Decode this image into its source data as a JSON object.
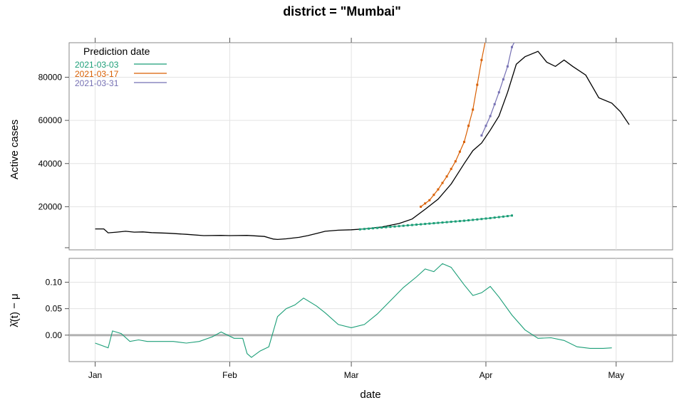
{
  "chart_data": {
    "type": "line",
    "title": "district = \"Mumbai\"",
    "xlabel": "date",
    "x_ticks": [
      "Jan",
      "Feb",
      "Mar",
      "Apr",
      "May"
    ],
    "x_tick_dates": [
      "2021-01-01",
      "2021-02-01",
      "2021-03-01",
      "2021-04-01",
      "2021-05-01"
    ],
    "xlim": [
      "2020-12-26",
      "2021-05-14"
    ],
    "grid": true,
    "colors": {
      "observed": "#000000",
      "p1": "#1b9e77",
      "p2": "#d95f02",
      "p3": "#7570b3",
      "baseline": "#b0b0b0"
    },
    "top": {
      "ylabel": "Active cases",
      "ylim": [
        0,
        96000
      ],
      "y_ticks": [
        20000,
        40000,
        60000,
        80000
      ],
      "y_tick_labels": [
        "20000",
        "40000",
        "60000",
        "80000"
      ],
      "legend": {
        "title": "Prediction date",
        "position": "top-left",
        "entries": [
          "2021-03-03",
          "2021-03-17",
          "2021-03-31"
        ]
      },
      "observed": {
        "x": [
          "2021-01-01",
          "2021-01-03",
          "2021-01-04",
          "2021-01-06",
          "2021-01-08",
          "2021-01-10",
          "2021-01-12",
          "2021-01-14",
          "2021-01-18",
          "2021-01-22",
          "2021-01-26",
          "2021-01-30",
          "2021-02-01",
          "2021-02-05",
          "2021-02-09",
          "2021-02-11",
          "2021-02-12",
          "2021-02-14",
          "2021-02-17",
          "2021-02-19",
          "2021-02-21",
          "2021-02-23",
          "2021-02-26",
          "2021-03-01",
          "2021-03-04",
          "2021-03-08",
          "2021-03-12",
          "2021-03-15",
          "2021-03-18",
          "2021-03-21",
          "2021-03-24",
          "2021-03-27",
          "2021-03-29",
          "2021-03-31",
          "2021-04-02",
          "2021-04-04",
          "2021-04-06",
          "2021-04-08",
          "2021-04-10",
          "2021-04-13",
          "2021-04-15",
          "2021-04-17",
          "2021-04-19",
          "2021-04-21",
          "2021-04-24",
          "2021-04-27",
          "2021-04-30",
          "2021-05-02",
          "2021-05-03",
          "2021-05-04"
        ],
        "y": [
          9700,
          9700,
          7900,
          8200,
          8600,
          8200,
          8300,
          8000,
          7700,
          7200,
          6600,
          6700,
          6600,
          6700,
          6200,
          5000,
          4800,
          5100,
          5800,
          6600,
          7600,
          8600,
          9100,
          9300,
          9700,
          10600,
          12200,
          14300,
          18800,
          23500,
          30500,
          40000,
          46000,
          49500,
          55500,
          62000,
          73000,
          86000,
          89500,
          92000,
          87000,
          85000,
          88000,
          85000,
          81000,
          70500,
          68000,
          64000,
          61000,
          58000
        ]
      },
      "predictions": [
        {
          "name": "2021-03-03",
          "x": [
            "2021-03-03",
            "2021-03-06",
            "2021-03-09",
            "2021-03-12",
            "2021-03-15",
            "2021-03-18",
            "2021-03-21",
            "2021-03-24",
            "2021-03-27",
            "2021-03-30",
            "2021-04-02",
            "2021-04-05",
            "2021-04-07"
          ],
          "y": [
            9500,
            10000,
            10500,
            11000,
            11500,
            12000,
            12500,
            13000,
            13500,
            14100,
            14700,
            15400,
            15900
          ]
        },
        {
          "name": "2021-03-17",
          "x": [
            "2021-03-17",
            "2021-03-19",
            "2021-03-21",
            "2021-03-23",
            "2021-03-25",
            "2021-03-27",
            "2021-03-29",
            "2021-03-31",
            "2021-04-01"
          ],
          "y": [
            20000,
            23000,
            28000,
            34000,
            41000,
            50000,
            65000,
            88000,
            98000
          ]
        },
        {
          "name": "2021-03-31",
          "x": [
            "2021-03-31",
            "2021-04-02",
            "2021-04-04",
            "2021-04-06",
            "2021-04-07",
            "2021-04-08"
          ],
          "y": [
            53000,
            62000,
            73000,
            85000,
            94000,
            98000
          ]
        }
      ]
    },
    "bottom": {
      "ylabel": "λ̂(t) − μ",
      "ylim": [
        -0.05,
        0.145
      ],
      "y_ticks": [
        0,
        0.05,
        0.1
      ],
      "y_tick_labels": [
        "0.00",
        "0.05",
        "0.10"
      ],
      "baseline": 0,
      "series": {
        "x": [
          "2021-01-01",
          "2021-01-04",
          "2021-01-05",
          "2021-01-07",
          "2021-01-09",
          "2021-01-11",
          "2021-01-13",
          "2021-01-16",
          "2021-01-19",
          "2021-01-22",
          "2021-01-25",
          "2021-01-28",
          "2021-01-30",
          "2021-02-02",
          "2021-02-04",
          "2021-02-05",
          "2021-02-06",
          "2021-02-08",
          "2021-02-10",
          "2021-02-12",
          "2021-02-14",
          "2021-02-16",
          "2021-02-18",
          "2021-02-21",
          "2021-02-23",
          "2021-02-26",
          "2021-03-01",
          "2021-03-04",
          "2021-03-07",
          "2021-03-10",
          "2021-03-13",
          "2021-03-16",
          "2021-03-18",
          "2021-03-20",
          "2021-03-22",
          "2021-03-24",
          "2021-03-27",
          "2021-03-29",
          "2021-03-31",
          "2021-04-02",
          "2021-04-04",
          "2021-04-07",
          "2021-04-10",
          "2021-04-13",
          "2021-04-16",
          "2021-04-19",
          "2021-04-22",
          "2021-04-25",
          "2021-04-28",
          "2021-04-30"
        ],
        "y": [
          -0.015,
          -0.024,
          0.008,
          0.003,
          -0.012,
          -0.009,
          -0.012,
          -0.012,
          -0.012,
          -0.015,
          -0.012,
          -0.003,
          0.006,
          -0.006,
          -0.006,
          -0.035,
          -0.042,
          -0.03,
          -0.022,
          0.035,
          0.05,
          0.057,
          0.07,
          0.055,
          0.042,
          0.02,
          0.014,
          0.02,
          0.04,
          0.065,
          0.09,
          0.11,
          0.125,
          0.12,
          0.135,
          0.128,
          0.095,
          0.075,
          0.08,
          0.092,
          0.072,
          0.038,
          0.01,
          -0.006,
          -0.005,
          -0.01,
          -0.022,
          -0.025,
          -0.025,
          -0.024
        ]
      }
    }
  }
}
